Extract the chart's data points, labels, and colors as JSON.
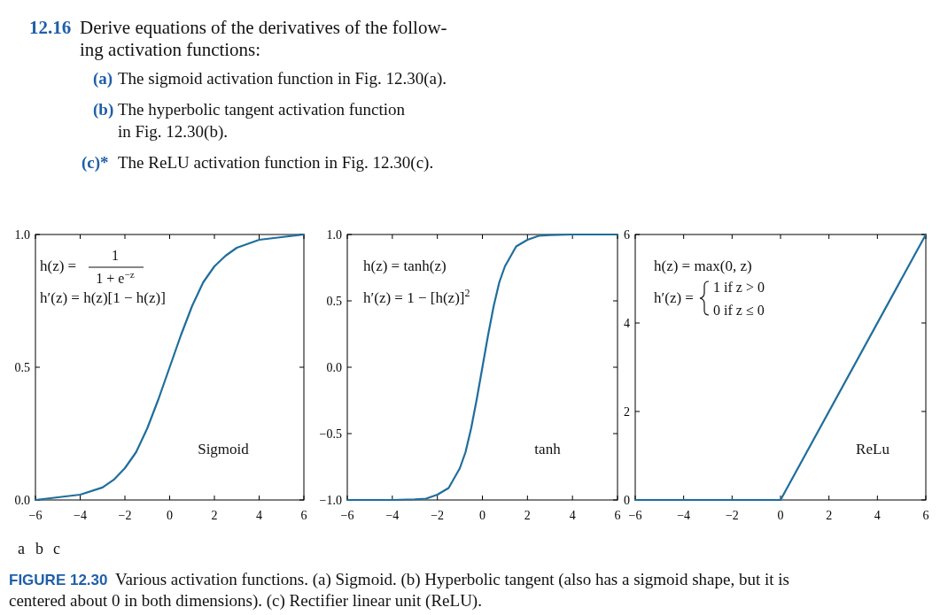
{
  "chart_data": [
    {
      "type": "line",
      "x": [
        -6,
        -5,
        -4,
        -3,
        -2.5,
        -2,
        -1.5,
        -1,
        -0.5,
        0,
        0.5,
        1,
        1.5,
        2,
        2.5,
        3,
        4,
        5,
        6
      ],
      "series": [
        {
          "color": "#1f6e9c",
          "values": [
            0.0,
            0.01,
            0.02,
            0.047,
            0.076,
            0.12,
            0.18,
            0.27,
            0.38,
            0.5,
            0.62,
            0.73,
            0.82,
            0.88,
            0.92,
            0.95,
            0.98,
            0.99,
            1.0
          ]
        }
      ],
      "xlim": [
        -6,
        6
      ],
      "ylim": [
        0,
        1
      ],
      "xticks": [
        {
          "value": -6,
          "label": "−6"
        },
        {
          "value": -4,
          "label": "−4"
        },
        {
          "value": -2,
          "label": "−2"
        },
        0,
        2,
        4,
        6
      ],
      "yticks": [
        {
          "value": 0,
          "label": "0.0"
        },
        {
          "value": 0.5,
          "label": "0.5"
        },
        {
          "value": 1,
          "label": "1.0"
        }
      ],
      "annotations": [
        "12.16",
        "Derive equations of the derivatives of the follow-",
        "ing activation functions:",
        "(a)",
        "The sigmoid activation function in Fig. 12.30(a).",
        "(b)",
        "The hyperbolic tangent activation function",
        "in Fig. 12.30(b).",
        "(c)*",
        "The ReLU activation function in Fig. 12.30(c).",
        "h(z) =",
        "1",
        "1 + e$^{−z}$",
        "h′(z) = h(z)[1 − h(z)]",
        "Sigmoid",
        "a"
      ]
    },
    {
      "type": "line",
      "x": [
        -6,
        -4,
        -3,
        -2.5,
        -2,
        -1.5,
        -1,
        -0.75,
        -0.5,
        -0.25,
        0,
        0.25,
        0.5,
        0.75,
        1,
        1.5,
        2,
        2.5,
        3,
        4,
        6
      ],
      "series": [
        {
          "color": "#1f6e9c",
          "values": [
            -1.0,
            -1.0,
            -0.995,
            -0.99,
            -0.96,
            -0.91,
            -0.76,
            -0.64,
            -0.46,
            -0.24,
            0,
            0.24,
            0.46,
            0.64,
            0.76,
            0.91,
            0.96,
            0.99,
            0.995,
            1.0,
            1.0
          ]
        }
      ],
      "xlim": [
        -6,
        6
      ],
      "ylim": [
        -1,
        1
      ],
      "xticks": [
        {
          "value": -6,
          "label": "−6"
        },
        {
          "value": -4,
          "label": "−4"
        },
        {
          "value": -2,
          "label": "−2"
        },
        0,
        2,
        4,
        6
      ],
      "yticks": [
        {
          "value": -1,
          "label": "−1.0"
        },
        {
          "value": -0.5,
          "label": "−0.5"
        },
        {
          "value": 0,
          "label": "0.0"
        },
        {
          "value": 0.5,
          "label": "0.5"
        },
        {
          "value": 1,
          "label": "1.0"
        }
      ],
      "annotations": [
        "h(z) = tanh(z)",
        "h′(z) = 1 − [h(z)]$^{2}$",
        "tanh",
        "b"
      ]
    },
    {
      "type": "line",
      "x": [
        -6,
        0,
        6
      ],
      "series": [
        {
          "color": "#1f6e9c",
          "values": [
            0,
            0,
            6
          ]
        }
      ],
      "xlim": [
        -6,
        6
      ],
      "ylim": [
        0,
        6
      ],
      "xticks": [
        {
          "value": -6,
          "label": "−6"
        },
        {
          "value": -4,
          "label": "−4"
        },
        {
          "value": -2,
          "label": "−2"
        },
        0,
        2,
        4,
        6
      ],
      "yticks": [
        0,
        2,
        4,
        6
      ],
      "annotations": [
        "h(z) = max(0, z)",
        "h′(z) =",
        "1   if z > 0",
        "0   if z ≤ 0",
        "ReLu",
        "c",
        "FIGURE 12.30",
        "Various activation functions. (a) Sigmoid. (b) Hyperbolic tangent (also has a sigmoid shape, but it is",
        "centered about 0 in both dimensions). (c) Rectifier linear unit (ReLU)."
      ]
    }
  ]
}
